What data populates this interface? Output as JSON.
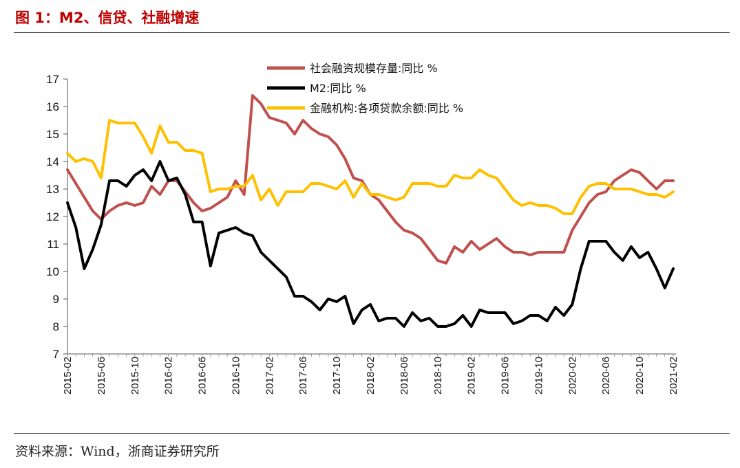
{
  "figure": {
    "title": "图 1：M2、信贷、社融增速",
    "source": "资料来源：Wind，浙商证券研究所"
  },
  "chart_data": {
    "type": "line",
    "title": "图 1：M2、信贷、社融增速",
    "xlabel": "",
    "ylabel": "",
    "ylim": [
      7,
      17
    ],
    "yticks": [
      "7",
      "8",
      "9",
      "10",
      "11",
      "12",
      "13",
      "14",
      "15",
      "16",
      "17"
    ],
    "xticks": [
      "2015-02",
      "2015-06",
      "2015-10",
      "2016-02",
      "2016-06",
      "2016-10",
      "2017-02",
      "2017-06",
      "2017-10",
      "2018-02",
      "2018-06",
      "2018-10",
      "2019-02",
      "2019-06",
      "2019-10",
      "2020-02",
      "2020-06",
      "2020-10",
      "2021-02"
    ],
    "legend_position": "top-center",
    "months": [
      "2015-02",
      "2015-03",
      "2015-04",
      "2015-05",
      "2015-06",
      "2015-07",
      "2015-08",
      "2015-09",
      "2015-10",
      "2015-11",
      "2015-12",
      "2016-01",
      "2016-02",
      "2016-03",
      "2016-04",
      "2016-05",
      "2016-06",
      "2016-07",
      "2016-08",
      "2016-09",
      "2016-10",
      "2016-11",
      "2016-12",
      "2017-01",
      "2017-02",
      "2017-03",
      "2017-04",
      "2017-05",
      "2017-06",
      "2017-07",
      "2017-08",
      "2017-09",
      "2017-10",
      "2017-11",
      "2017-12",
      "2018-01",
      "2018-02",
      "2018-03",
      "2018-04",
      "2018-05",
      "2018-06",
      "2018-07",
      "2018-08",
      "2018-09",
      "2018-10",
      "2018-11",
      "2018-12",
      "2019-01",
      "2019-02",
      "2019-03",
      "2019-04",
      "2019-05",
      "2019-06",
      "2019-07",
      "2019-08",
      "2019-09",
      "2019-10",
      "2019-11",
      "2019-12",
      "2020-01",
      "2020-02",
      "2020-03",
      "2020-04",
      "2020-05",
      "2020-06",
      "2020-07",
      "2020-08",
      "2020-09",
      "2020-10",
      "2020-11",
      "2020-12",
      "2021-01",
      "2021-02"
    ],
    "series": [
      {
        "name": "社会融资规模存量:同比 %",
        "color": "#c0504d",
        "values": [
          13.7,
          13.2,
          12.7,
          12.2,
          11.9,
          12.2,
          12.4,
          12.5,
          12.4,
          12.5,
          13.1,
          12.8,
          13.3,
          13.3,
          12.9,
          12.5,
          12.2,
          12.3,
          12.5,
          12.7,
          13.3,
          12.8,
          16.4,
          16.1,
          15.6,
          15.5,
          15.4,
          15.0,
          15.5,
          15.2,
          15.0,
          14.9,
          14.6,
          14.1,
          13.4,
          13.3,
          12.8,
          12.6,
          12.2,
          11.8,
          11.5,
          11.4,
          11.2,
          10.8,
          10.4,
          10.3,
          10.9,
          10.7,
          11.1,
          10.8,
          11.0,
          11.2,
          10.9,
          10.7,
          10.7,
          10.6,
          10.7,
          10.7,
          10.7,
          10.7,
          11.5,
          12.0,
          12.5,
          12.8,
          12.9,
          13.3,
          13.5,
          13.7,
          13.6,
          13.3,
          13.0,
          13.3,
          13.3
        ]
      },
      {
        "name": "M2:同比 %",
        "color": "#000000",
        "values": [
          12.5,
          11.6,
          10.1,
          10.8,
          11.7,
          13.3,
          13.3,
          13.1,
          13.5,
          13.7,
          13.3,
          14.0,
          13.3,
          13.4,
          12.8,
          11.8,
          11.8,
          10.2,
          11.4,
          11.5,
          11.6,
          11.4,
          11.3,
          10.7,
          10.4,
          10.1,
          9.8,
          9.1,
          9.1,
          8.9,
          8.6,
          9.0,
          8.9,
          9.1,
          8.1,
          8.6,
          8.8,
          8.2,
          8.3,
          8.3,
          8.0,
          8.5,
          8.2,
          8.3,
          8.0,
          8.0,
          8.1,
          8.4,
          8.0,
          8.6,
          8.5,
          8.5,
          8.5,
          8.1,
          8.2,
          8.4,
          8.4,
          8.2,
          8.7,
          8.4,
          8.8,
          10.1,
          11.1,
          11.1,
          11.1,
          10.7,
          10.4,
          10.9,
          10.5,
          10.7,
          10.1,
          9.4,
          10.1
        ]
      },
      {
        "name": "金融机构:各项贷款余额:同比 %",
        "color": "#ffc000",
        "values": [
          14.3,
          14.0,
          14.1,
          14.0,
          13.4,
          15.5,
          15.4,
          15.4,
          15.4,
          14.9,
          14.3,
          15.3,
          14.7,
          14.7,
          14.4,
          14.4,
          14.3,
          12.9,
          13.0,
          13.0,
          13.1,
          13.1,
          13.5,
          12.6,
          13.0,
          12.4,
          12.9,
          12.9,
          12.9,
          13.2,
          13.2,
          13.1,
          13.0,
          13.3,
          12.7,
          13.2,
          12.8,
          12.8,
          12.7,
          12.6,
          12.7,
          13.2,
          13.2,
          13.2,
          13.1,
          13.1,
          13.5,
          13.4,
          13.4,
          13.7,
          13.5,
          13.4,
          13.0,
          12.6,
          12.4,
          12.5,
          12.4,
          12.4,
          12.3,
          12.1,
          12.1,
          12.7,
          13.1,
          13.2,
          13.2,
          13.0,
          13.0,
          13.0,
          12.9,
          12.8,
          12.8,
          12.7,
          12.9
        ]
      }
    ]
  }
}
